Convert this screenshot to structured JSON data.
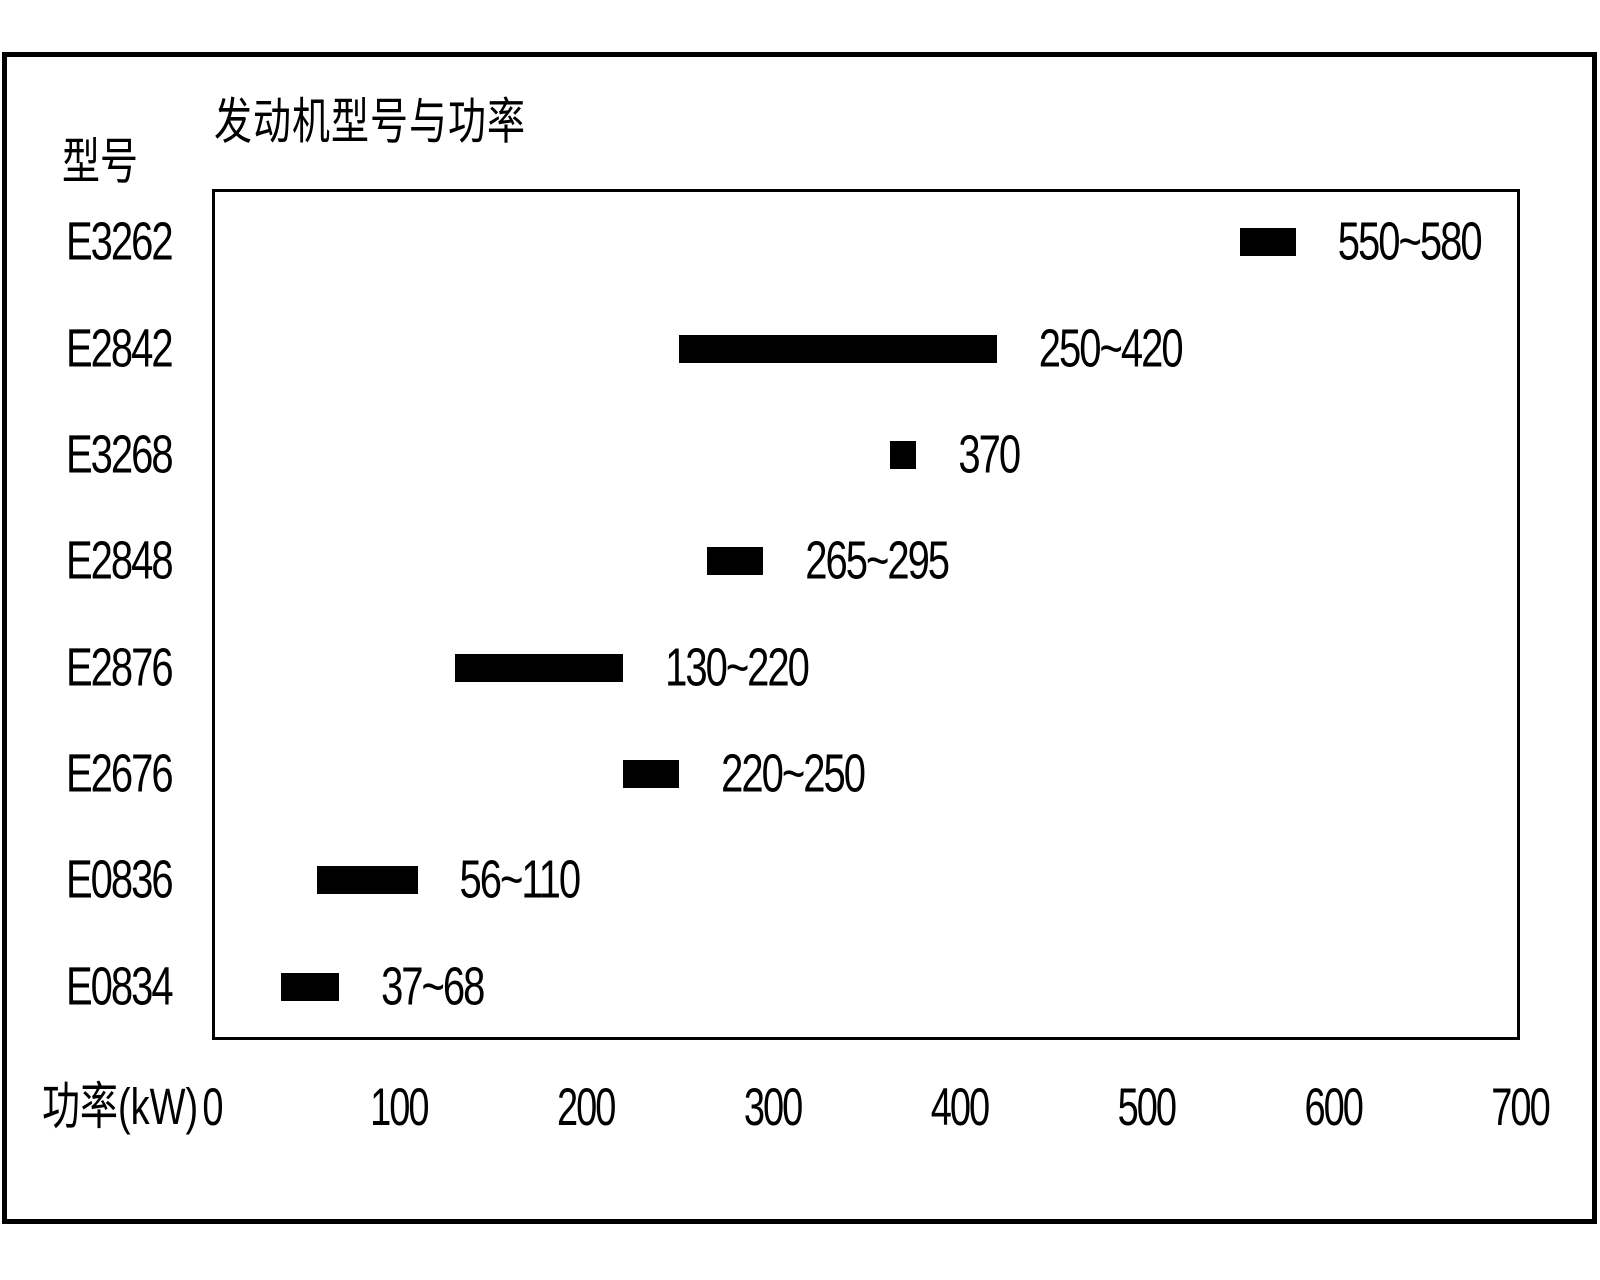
{
  "figure": {
    "background": "#ffffff",
    "ink_color": "#000000"
  },
  "chart_data": {
    "type": "bar",
    "orientation": "horizontal-range",
    "title": "发动机型号与功率",
    "xlabel": "功率(kW)",
    "ylabel": "型号",
    "xlim": [
      0,
      700
    ],
    "x_ticks": [
      0,
      100,
      200,
      300,
      400,
      500,
      600,
      700
    ],
    "grid": false,
    "legend": "none",
    "bar_color": "#000000",
    "series": [
      {
        "model": "E3262",
        "power_min": 550,
        "power_max": 580,
        "label": "550~580"
      },
      {
        "model": "E2842",
        "power_min": 250,
        "power_max": 420,
        "label": "250~420"
      },
      {
        "model": "E3268",
        "power_min": 370,
        "power_max": 370,
        "label": "370"
      },
      {
        "model": "E2848",
        "power_min": 265,
        "power_max": 295,
        "label": "265~295"
      },
      {
        "model": "E2876",
        "power_min": 130,
        "power_max": 220,
        "label": "130~220"
      },
      {
        "model": "E2676",
        "power_min": 220,
        "power_max": 250,
        "label": "220~250"
      },
      {
        "model": "E0836",
        "power_min": 56,
        "power_max": 110,
        "label": "56~110"
      },
      {
        "model": "E0834",
        "power_min": 37,
        "power_max": 68,
        "label": "37~68"
      }
    ]
  }
}
